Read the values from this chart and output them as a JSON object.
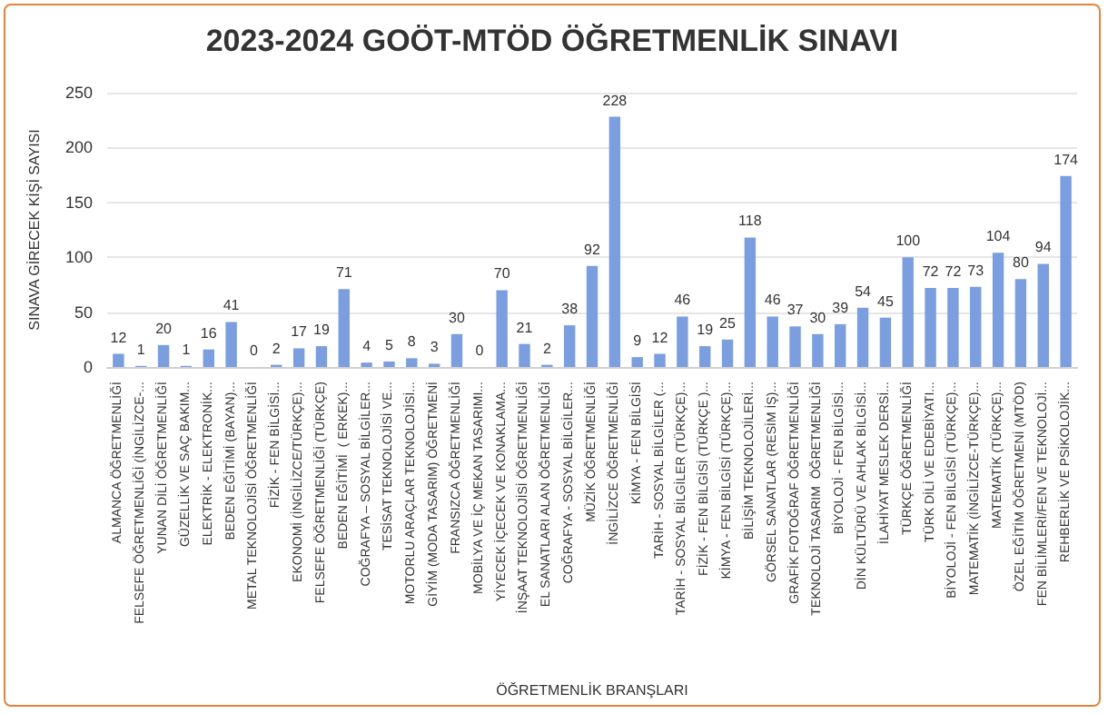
{
  "chart_data": {
    "type": "bar",
    "title": "2023-2024 GOÖT-MTÖD ÖĞRETMENLİK SINAVI",
    "xlabel": "ÖĞRETMENLİK BRANŞLARI",
    "ylabel": "SINAVA GİRECEK KİŞİ SAYISI",
    "categories": [
      "ALMANCA ÖĞRETMENLİĞİ",
      "FELSEFE ÖĞRETMENLİĞİ (İNGİLİZCE-...",
      "YUNAN DİLİ ÖĞRETMENLİĞİ",
      "GÜZELLİK VE SAÇ BAKIM...",
      "ELEKTRİK - ELEKTRONİK...",
      "BEDEN EĞİTİMİ (BAYAN)...",
      "METAL TEKNOLOJİSİ ÖĞRETMENLİĞİ",
      "FİZİK - FEN BİLGİSİ...",
      "EKONOMİ (İNGİLİZCE/TÜRKÇE)...",
      "FELSEFE ÖĞRETMENLİĞİ (TÜRKÇE)",
      "BEDEN EĞİTİMİ  ( ERKEK)...",
      "COĞRAFYA – SOSYAL BİLGİLER...",
      "TESİSAT TEKNOLOJİSİ VE...",
      "MOTORLU ARAÇLAR TEKNOLOJİSİ...",
      "GİYİM (MODA TASARIM) ÖĞRETMENİ",
      "FRANSIZCA ÖĞRETMENLİĞİ",
      "MOBİLYA VE İÇ MEKAN TASARIMI...",
      "YİYECEK İÇECEK VE KONAKLAMA...",
      "İNŞAAT TEKNOLOJİSİ ÖĞRETMENLİĞİ",
      "EL SANATLARI ALAN ÖĞRETMENLİĞİ",
      "COĞRAFYA - SOSYAL BİLGİLER...",
      "MÜZİK ÖĞRETMENLİĞİ",
      "İNGİLİZCE ÖĞRETMENLİĞİ",
      "KİMYA - FEN BİLGİSİ",
      "TARİH - SOSYAL BİLGİLER (...",
      "TARİH - SOSYAL BİLGİLER (TÜRKÇE)...",
      "FİZİK - FEN BİLGİSİ (TÜRKÇE )...",
      "KİMYA - FEN BİLGİSİ (TÜRKÇE)...",
      "BİLİŞİM TEKNOLOJİLERİ...",
      "GÖRSEL SANATLAR (RESİM İŞ)...",
      "GRAFİK FOTOĞRAF ÖĞRETMENLİĞİ",
      "TEKNOLOJİ TASARIM  ÖĞRETMENLİĞİ",
      "BİYOLOJİ - FEN BİLGİSİ...",
      "DİN KÜLTÜRÜ VE AHLAK BİLGİSİ...",
      "İLAHİYAT MESLEK DERSİ...",
      "TÜRKÇE ÖĞRETMENLİĞİ",
      "TÜRK DİLİ VE EDEBİYATI...",
      "BİYOLOJİ - FEN BİLGİSİ (TÜRKÇE)...",
      "MATEMATİK (İNGİLİZCE-TÜRKÇE)...",
      "MATEMATİK (TÜRKÇE)...",
      "ÖZEL EĞİTİM ÖĞRETMENİ (MTÖD)",
      "FEN BİLİMLERİ/FEN VE TEKNOLOJİ...",
      "REHBERLİK VE PSİKOLOJİK..."
    ],
    "values": [
      12,
      1,
      20,
      1,
      16,
      41,
      0,
      2,
      17,
      19,
      71,
      4,
      5,
      8,
      3,
      30,
      0,
      70,
      21,
      2,
      38,
      92,
      228,
      9,
      12,
      46,
      19,
      25,
      118,
      46,
      37,
      30,
      39,
      54,
      45,
      100,
      72,
      72,
      73,
      104,
      80,
      94,
      174
    ],
    "color": "#7a9ee0",
    "ylim": [
      0,
      250
    ],
    "yticks": [
      0,
      50,
      100,
      150,
      200,
      250
    ],
    "grid": "y",
    "data_labels": true
  }
}
